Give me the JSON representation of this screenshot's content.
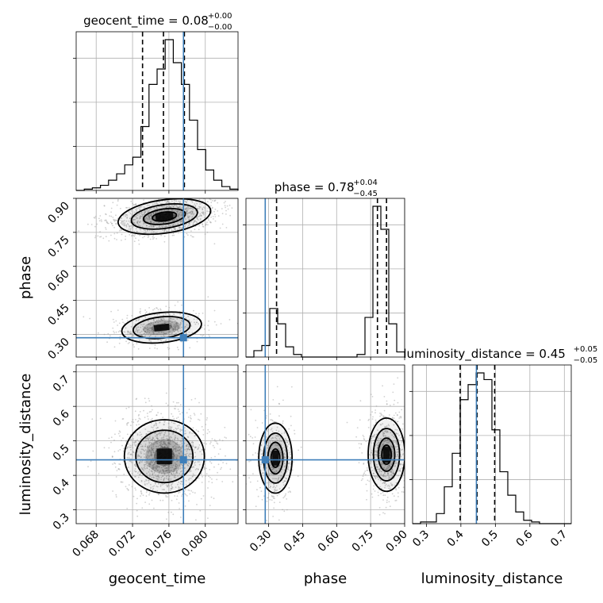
{
  "chart_data": {
    "type": "corner",
    "parameters": [
      "geocent_time",
      "phase",
      "luminosity_distance"
    ],
    "ranges": {
      "geocent_time": [
        0.0658,
        0.0836
      ],
      "phase": [
        0.2,
        0.9
      ],
      "luminosity_distance": [
        0.26,
        0.72
      ]
    },
    "truths": {
      "geocent_time": 0.0776,
      "phase": 0.285,
      "luminosity_distance": 0.445
    },
    "titles": [
      {
        "param": "geocent_time",
        "main": "geocent_time = 0.08",
        "sup": "+0.00",
        "sub": "−0.00"
      },
      {
        "param": "phase",
        "main": "phase = 0.78",
        "sup": "+0.04",
        "sub": "−0.45"
      },
      {
        "param": "luminosity_distance",
        "main": "luminosity_distance = 0.45",
        "sup": "+0.05",
        "sub": "−0.05"
      }
    ],
    "axis_labels": {
      "x": [
        "geocent_time",
        "phase",
        "luminosity_distance"
      ],
      "y": [
        "phase",
        "luminosity_distance"
      ]
    },
    "ticks": {
      "geocent_time": {
        "values": [
          0.068,
          0.072,
          0.076,
          0.08
        ],
        "labels": [
          "0.068",
          "0.072",
          "0.076",
          "0.080"
        ]
      },
      "phase": {
        "values": [
          0.3,
          0.45,
          0.6,
          0.75,
          0.9
        ],
        "labels": [
          "0.30",
          "0.45",
          "0.60",
          "0.75",
          "0.90"
        ]
      },
      "luminosity_distance": {
        "values": [
          0.3,
          0.4,
          0.5,
          0.6,
          0.7
        ],
        "labels": [
          "0.3",
          "0.4",
          "0.5",
          "0.6",
          "0.7"
        ]
      }
    },
    "quantiles": {
      "geocent_time": [
        0.0731,
        0.0754,
        0.0777
      ],
      "phase": [
        0.335,
        0.78,
        0.82
      ],
      "luminosity_distance": [
        0.398,
        0.447,
        0.498
      ]
    },
    "histograms": {
      "geocent_time": {
        "edges_start": 0.0658,
        "bin_width": 0.00089,
        "counts": [
          0,
          1,
          2,
          4,
          8,
          13,
          20,
          26,
          50,
          83,
          95,
          118,
          100,
          83,
          55,
          32,
          16,
          8,
          3,
          1
        ]
      },
      "phase": {
        "edges_start": 0.2,
        "bin_width": 0.035,
        "counts": [
          0,
          5,
          9,
          38,
          26,
          8,
          2,
          0,
          0,
          0,
          0,
          0,
          0,
          0,
          2,
          31,
          118,
          100,
          26,
          4
        ]
      },
      "luminosity_distance": {
        "edges_start": 0.26,
        "bin_width": 0.023,
        "counts": [
          0,
          1,
          1,
          6,
          22,
          42,
          74,
          83,
          90,
          86,
          56,
          31,
          17,
          7,
          2,
          1,
          0,
          0,
          0,
          0
        ]
      }
    },
    "contour_centers": [
      {
        "x_param": "geocent_time",
        "y_param": "phase",
        "mode": [
          0.0755,
          0.82
        ]
      },
      {
        "x_param": "geocent_time",
        "y_param": "phase",
        "mode": [
          0.0752,
          0.33
        ]
      },
      {
        "x_param": "geocent_time",
        "y_param": "luminosity_distance",
        "mode": [
          0.0755,
          0.455
        ]
      },
      {
        "x_param": "phase",
        "y_param": "luminosity_distance",
        "mode": [
          0.33,
          0.45
        ]
      },
      {
        "x_param": "phase",
        "y_param": "luminosity_distance",
        "mode": [
          0.82,
          0.46
        ]
      }
    ],
    "grid": true,
    "colors": {
      "truth": "#3f7fb9",
      "contour": "#000000",
      "grid": "#b0b0b0"
    }
  }
}
